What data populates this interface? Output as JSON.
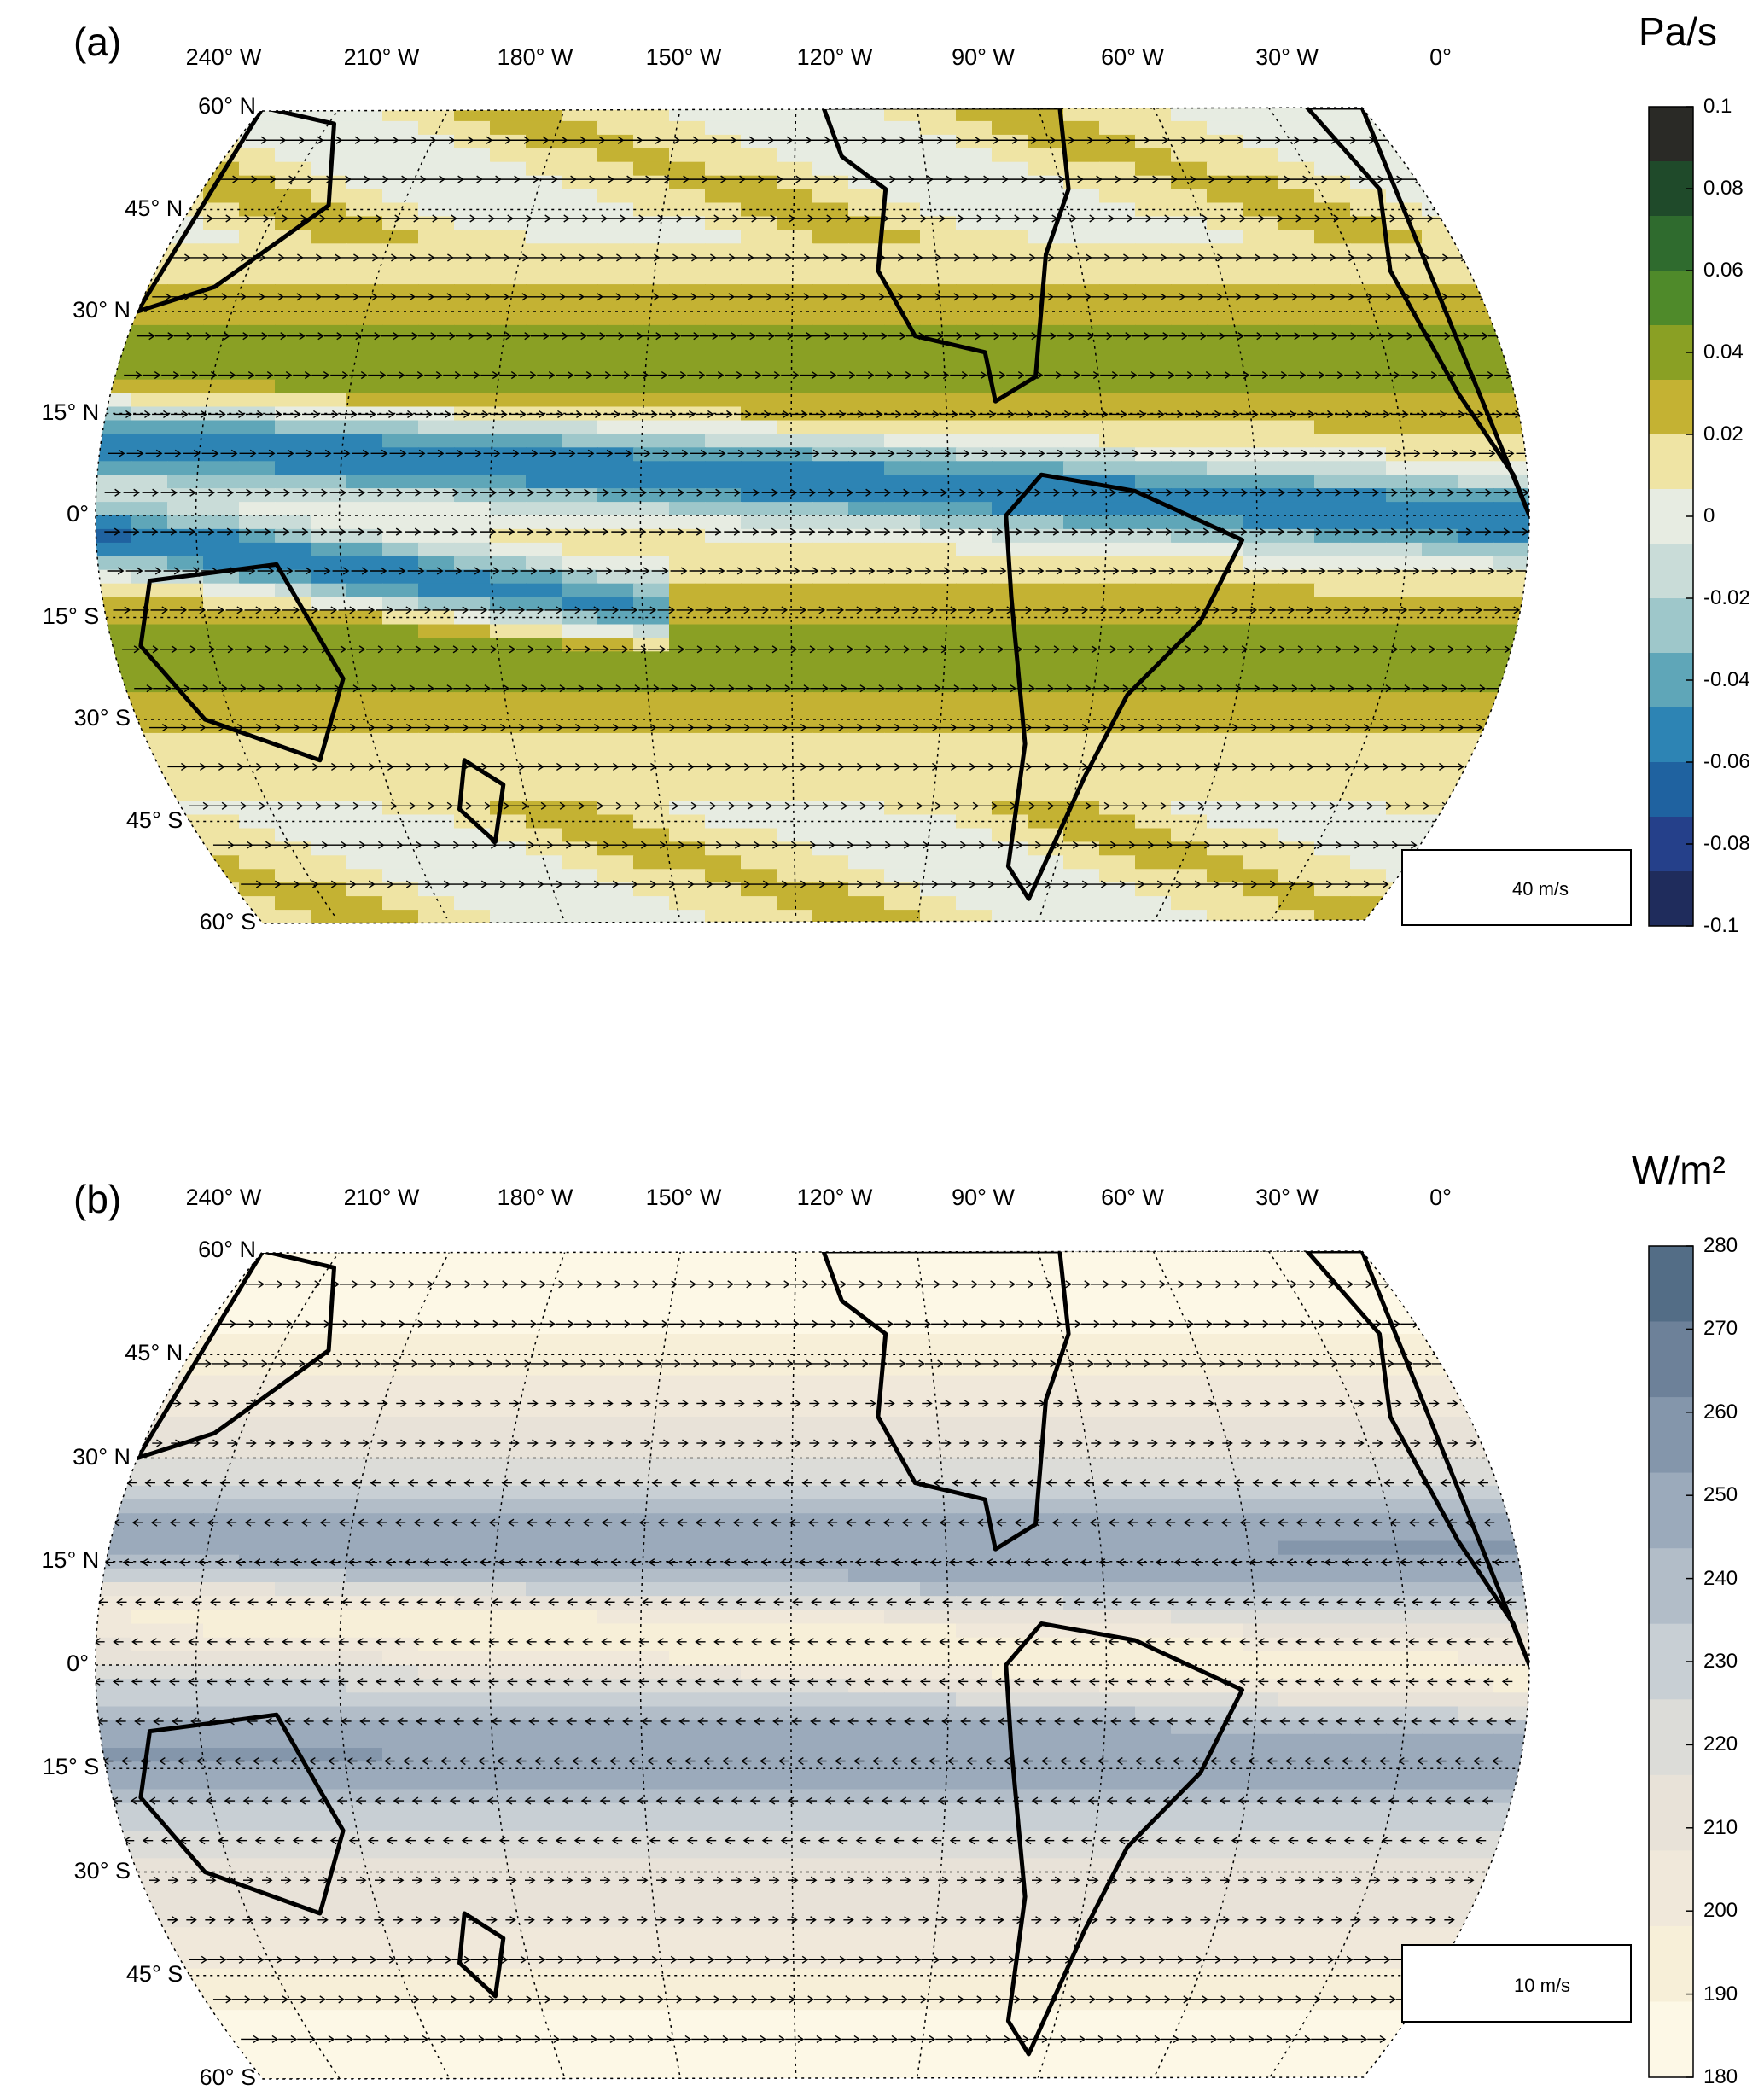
{
  "panels": [
    {
      "id": "a",
      "label": "(a)",
      "unit": "Pa/s",
      "lon_labels": [
        "240° W",
        "210° W",
        "180° W",
        "150° W",
        "120° W",
        "90° W",
        "60° W",
        "30° W",
        "0°"
      ],
      "lat_labels": [
        "60° N",
        "45° N",
        "30° N",
        "15° N",
        "0°",
        "15° S",
        "30° S",
        "45° S",
        "60° S"
      ],
      "colorbar_ticks": [
        "0.1",
        "0.08",
        "0.06",
        "0.04",
        "0.02",
        "0",
        "-0.02",
        "-0.04",
        "-0.06",
        "-0.08",
        "-0.1"
      ],
      "colorbar_colors": [
        "#2a2a26",
        "#1f4a2a",
        "#2f6b2e",
        "#4f8a2a",
        "#8aa024",
        "#c4b233",
        "#efe4a4",
        "#e7ece2",
        "#c9dcd8",
        "#9ec7ca",
        "#5fa6b8",
        "#2d84b4",
        "#1f62a0",
        "#25408a",
        "#1f2c5c"
      ],
      "reference_vector": "40 m/s"
    },
    {
      "id": "b",
      "label": "(b)",
      "unit": "W/m²",
      "lon_labels": [
        "240° W",
        "210° W",
        "180° W",
        "150° W",
        "120° W",
        "90° W",
        "60° W",
        "30° W",
        "0°"
      ],
      "lat_labels": [
        "60° N",
        "45° N",
        "30° N",
        "15° N",
        "0°",
        "15° S",
        "30° S",
        "45° S",
        "60° S"
      ],
      "colorbar_ticks": [
        "280",
        "270",
        "260",
        "250",
        "240",
        "230",
        "220",
        "210",
        "200",
        "190",
        "180"
      ],
      "colorbar_colors": [
        "#536d86",
        "#6d8199",
        "#8496ab",
        "#9baabb",
        "#b2bdc8",
        "#c8cfd4",
        "#dcdcd8",
        "#e8e2d8",
        "#f0e8da",
        "#f7efd8",
        "#fdf8e6"
      ],
      "reference_vector": "10 m/s"
    }
  ]
}
